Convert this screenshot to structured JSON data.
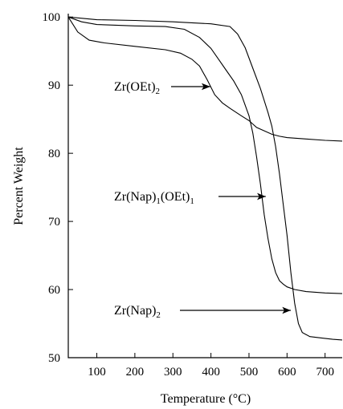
{
  "chart_data": {
    "type": "line",
    "xlabel": "Temperature (°C)",
    "ylabel": "Percent Weight",
    "xlim": [
      25,
      745
    ],
    "ylim": [
      50,
      100.5
    ],
    "x_ticks": [
      100,
      200,
      300,
      400,
      500,
      600,
      700
    ],
    "y_ticks": [
      50,
      60,
      70,
      80,
      90,
      100
    ],
    "grid": false,
    "series": [
      {
        "name": "Zr(OEt)2",
        "x": [
          25,
          50,
          80,
          120,
          200,
          280,
          320,
          350,
          370,
          390,
          410,
          430,
          450,
          480,
          500,
          520,
          540,
          560,
          580,
          600,
          650,
          700,
          745
        ],
        "y": [
          100,
          97.8,
          96.6,
          96.2,
          95.7,
          95.2,
          94.7,
          93.8,
          92.8,
          90.8,
          88.6,
          87.4,
          86.6,
          85.5,
          84.8,
          83.8,
          83.3,
          82.8,
          82.5,
          82.3,
          82.1,
          81.9,
          81.8
        ]
      },
      {
        "name": "Zr(Nap)1(OEt)1",
        "x": [
          25,
          60,
          100,
          150,
          200,
          280,
          330,
          370,
          400,
          420,
          440,
          460,
          480,
          500,
          510,
          520,
          530,
          540,
          550,
          560,
          570,
          580,
          590,
          600,
          620,
          650,
          700,
          745
        ],
        "y": [
          100,
          99.3,
          98.9,
          98.8,
          98.7,
          98.6,
          98.2,
          97.0,
          95.4,
          93.8,
          92.2,
          90.6,
          88.6,
          85.5,
          83.0,
          79.5,
          75.5,
          71.0,
          67.5,
          64.5,
          62.5,
          61.3,
          60.8,
          60.4,
          60.0,
          59.7,
          59.5,
          59.4
        ]
      },
      {
        "name": "Zr(Nap)2",
        "x": [
          25,
          100,
          200,
          300,
          400,
          450,
          470,
          490,
          510,
          530,
          550,
          560,
          570,
          580,
          590,
          600,
          610,
          620,
          630,
          640,
          660,
          690,
          720,
          745
        ],
        "y": [
          100,
          99.6,
          99.5,
          99.3,
          99.0,
          98.6,
          97.5,
          95.5,
          92.5,
          89.5,
          86.0,
          84.0,
          81.0,
          77.0,
          72.5,
          68.0,
          62.5,
          58.0,
          55.0,
          53.7,
          53.1,
          52.9,
          52.7,
          52.6
        ]
      }
    ],
    "annotations": [
      {
        "base": "Zr(OEt)",
        "sub": "2",
        "suffix": "",
        "target": [
          398,
          90
        ]
      },
      {
        "base": "Zr(Nap)",
        "sub": "1",
        "suffix": "(OEt)",
        "sub2": "1",
        "target": [
          544,
          73
        ]
      },
      {
        "base": "Zr(Nap)",
        "sub": "2",
        "suffix": "",
        "target": [
          610,
          57
        ]
      }
    ]
  }
}
